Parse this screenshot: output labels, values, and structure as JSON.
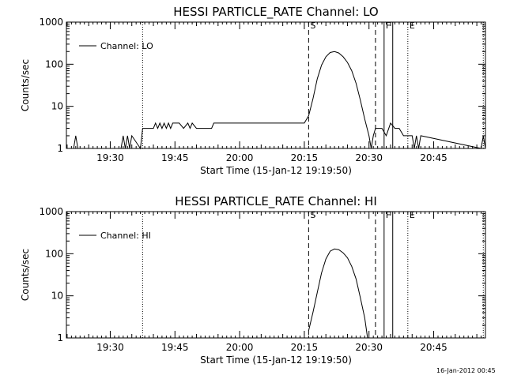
{
  "footer": {
    "timestamp": "16-Jan-2012 00:45"
  },
  "chart_data": [
    {
      "type": "line",
      "title": "HESSI PARTICLE_RATE Channel: LO",
      "xlabel": "Start Time (15-Jan-12 19:19:50)",
      "ylabel": "Counts/sec",
      "yscale": "log",
      "ylim": [
        1,
        1000
      ],
      "xlim": [
        "19:19:50",
        "20:57:00"
      ],
      "x_ticks": [
        "19:30",
        "19:45",
        "20:00",
        "20:15",
        "20:30",
        "20:45"
      ],
      "y_ticks": [
        "1",
        "10",
        "100",
        "1000"
      ],
      "legend": {
        "position": "top-left",
        "entries": [
          "Channel: LO"
        ]
      },
      "markers": [
        {
          "label": "",
          "time": "19:37:30",
          "style": "dotted"
        },
        {
          "label": "S",
          "time": "20:16:00",
          "style": "dashed"
        },
        {
          "label": "",
          "time": "20:31:30",
          "style": "dashed"
        },
        {
          "label": "F",
          "time": "20:33:30",
          "style": "solid"
        },
        {
          "label": "",
          "time": "20:35:30",
          "style": "solid"
        },
        {
          "label": "E",
          "time": "20:39:00",
          "style": "dotted"
        },
        {
          "label": "",
          "time": "20:56:30",
          "style": "dotted"
        }
      ],
      "series": [
        {
          "name": "Channel: LO",
          "x": [
            "19:21:30",
            "19:22:00",
            "19:22:30",
            "19:32:30",
            "19:33:00",
            "19:33:30",
            "19:34:00",
            "19:34:30",
            "19:35:00",
            "19:37:00",
            "19:37:30",
            "19:40:00",
            "19:40:30",
            "19:41:00",
            "19:41:30",
            "19:42:00",
            "19:42:30",
            "19:43:00",
            "19:43:30",
            "19:44:00",
            "19:44:30",
            "19:45:00",
            "19:46:00",
            "19:47:00",
            "19:48:00",
            "19:48:30",
            "19:49:00",
            "19:50:00",
            "19:51:30",
            "19:53:30",
            "19:54:00",
            "19:55:00",
            "19:56:00",
            "19:57:00",
            "19:58:00",
            "19:59:00",
            "20:00:00",
            "20:01:00",
            "20:02:00",
            "20:03:00",
            "20:04:00",
            "20:05:00",
            "20:06:00",
            "20:07:00",
            "20:08:00",
            "20:09:00",
            "20:10:00",
            "20:11:00",
            "20:12:00",
            "20:13:00",
            "20:14:00",
            "20:15:00",
            "20:16:00",
            "20:17:00",
            "20:18:00",
            "20:19:00",
            "20:20:00",
            "20:21:00",
            "20:22:00",
            "20:23:00",
            "20:24:00",
            "20:25:00",
            "20:26:00",
            "20:27:00",
            "20:28:00",
            "20:29:00",
            "20:30:00",
            "20:30:30",
            "20:31:00",
            "20:31:30",
            "20:32:00",
            "20:33:00",
            "20:34:00",
            "20:35:00",
            "20:36:00",
            "20:37:00",
            "20:38:00",
            "20:40:00",
            "20:40:30",
            "20:41:00",
            "20:41:30",
            "20:42:00",
            "20:56:00",
            "20:56:30",
            "20:57:00"
          ],
          "y": [
            1,
            2,
            1,
            1,
            2,
            1,
            2,
            1,
            2,
            1,
            3,
            3,
            4,
            3,
            4,
            3,
            4,
            3,
            4,
            3,
            4,
            4,
            4,
            3,
            4,
            3,
            4,
            3,
            3,
            3,
            4,
            4,
            4,
            4,
            4,
            4,
            4,
            4,
            4,
            4,
            4,
            4,
            4,
            4,
            4,
            4,
            4,
            4,
            4,
            4,
            4,
            4,
            6,
            15,
            45,
            95,
            150,
            190,
            200,
            185,
            150,
            110,
            70,
            35,
            14,
            5,
            2,
            1,
            2,
            3,
            3,
            3,
            2,
            4,
            3,
            3,
            2,
            2,
            1,
            2,
            1,
            2,
            1,
            2,
            1
          ]
        }
      ]
    },
    {
      "type": "line",
      "title": "HESSI PARTICLE_RATE Channel: HI",
      "xlabel": "Start Time (15-Jan-12 19:19:50)",
      "ylabel": "Counts/sec",
      "yscale": "log",
      "ylim": [
        1,
        1000
      ],
      "xlim": [
        "19:19:50",
        "20:57:00"
      ],
      "x_ticks": [
        "19:30",
        "19:45",
        "20:00",
        "20:15",
        "20:30",
        "20:45"
      ],
      "y_ticks": [
        "1",
        "10",
        "100",
        "1000"
      ],
      "legend": {
        "position": "top-left",
        "entries": [
          "Channel: HI"
        ]
      },
      "markers": [
        {
          "label": "",
          "time": "19:37:30",
          "style": "dotted"
        },
        {
          "label": "S",
          "time": "20:16:00",
          "style": "dashed"
        },
        {
          "label": "",
          "time": "20:31:30",
          "style": "dashed"
        },
        {
          "label": "F",
          "time": "20:33:30",
          "style": "solid"
        },
        {
          "label": "",
          "time": "20:35:30",
          "style": "solid"
        },
        {
          "label": "E",
          "time": "20:39:00",
          "style": "dotted"
        },
        {
          "label": "",
          "time": "20:56:30",
          "style": "dotted"
        }
      ],
      "series": [
        {
          "name": "Channel: HI",
          "x": [
            "20:16:00",
            "20:17:00",
            "20:18:00",
            "20:19:00",
            "20:20:00",
            "20:21:00",
            "20:22:00",
            "20:23:00",
            "20:24:00",
            "20:25:00",
            "20:26:00",
            "20:27:00",
            "20:28:00",
            "20:29:00",
            "20:29:40"
          ],
          "y": [
            1.5,
            4,
            12,
            35,
            75,
            115,
            130,
            125,
            105,
            80,
            50,
            25,
            9,
            3,
            1
          ]
        }
      ]
    }
  ]
}
